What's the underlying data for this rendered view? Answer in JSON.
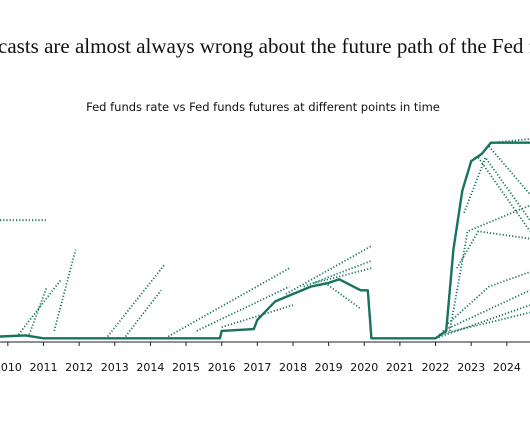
{
  "chart_data": {
    "type": "line",
    "title": "casts are almost always wrong about the future path of the Fed fu",
    "subtitle": "Fed funds rate vs Fed funds futures at different points in time",
    "xlim": [
      2009.78,
      2024.65
    ],
    "xticks": [
      2010,
      2011,
      2012,
      2013,
      2014,
      2015,
      2016,
      2017,
      2018,
      2019,
      2020,
      2021,
      2022,
      2023,
      2024
    ],
    "ylim": [
      0,
      5.5
    ],
    "series": [
      {
        "color": "#17735c",
        "style": "solid",
        "x": [
          2009.78,
          2010.5,
          2011,
          2013,
          2015.95,
          2016.0,
          2016.9,
          2017.0,
          2017.5,
          2018,
          2018.5,
          2019,
          2019.3,
          2019.6,
          2019.9,
          2020.1,
          2020.2,
          2022.0,
          2022.3,
          2022.5,
          2022.75,
          2023.0,
          2023.3,
          2023.55,
          2024.65
        ],
        "values": [
          0.15,
          0.18,
          0.1,
          0.1,
          0.1,
          0.3,
          0.35,
          0.6,
          1.1,
          1.3,
          1.5,
          1.6,
          1.7,
          1.55,
          1.4,
          1.4,
          0.1,
          0.1,
          0.3,
          2.5,
          4.1,
          4.9,
          5.1,
          5.4,
          5.4
        ]
      },
      {
        "color": "#17735c",
        "style": "dotted",
        "x": [
          2009.78,
          2011.1
        ],
        "values": [
          3.3,
          3.3
        ]
      },
      {
        "color": "#17735c",
        "style": "dotted",
        "x": [
          2010.3,
          2011.5
        ],
        "values": [
          0.2,
          1.7
        ]
      },
      {
        "color": "#17735c",
        "style": "dotted",
        "x": [
          2010.6,
          2011.1
        ],
        "values": [
          0.2,
          1.5
        ]
      },
      {
        "color": "#17735c",
        "style": "dotted",
        "x": [
          2011.3,
          2011.9
        ],
        "values": [
          0.3,
          2.5
        ]
      },
      {
        "color": "#17735c",
        "style": "dotted",
        "x": [
          2012.8,
          2014.4
        ],
        "values": [
          0.15,
          2.1
        ]
      },
      {
        "color": "#17735c",
        "style": "dotted",
        "x": [
          2013.3,
          2014.3
        ],
        "values": [
          0.15,
          1.4
        ]
      },
      {
        "color": "#17735c",
        "style": "dotted",
        "x": [
          2014.5,
          2017.9
        ],
        "values": [
          0.15,
          2.0
        ]
      },
      {
        "color": "#17735c",
        "style": "dotted",
        "x": [
          2015.3,
          2017.9
        ],
        "values": [
          0.3,
          1.5
        ]
      },
      {
        "color": "#17735c",
        "style": "dotted",
        "x": [
          2016.0,
          2018.0
        ],
        "values": [
          0.4,
          1.0
        ]
      },
      {
        "color": "#17735c",
        "style": "dotted",
        "x": [
          2017.8,
          2020.2
        ],
        "values": [
          1.3,
          2.6
        ]
      },
      {
        "color": "#17735c",
        "style": "dotted",
        "x": [
          2018.3,
          2020.2
        ],
        "values": [
          1.5,
          2.2
        ]
      },
      {
        "color": "#17735c",
        "style": "dotted",
        "x": [
          2018.6,
          2020.2
        ],
        "values": [
          1.6,
          2.0
        ]
      },
      {
        "color": "#17735c",
        "style": "dotted",
        "x": [
          2018.9,
          2019.9
        ],
        "values": [
          1.6,
          0.9
        ]
      },
      {
        "color": "#17735c",
        "style": "dotted",
        "x": [
          2022.0,
          2024.65
        ],
        "values": [
          0.1,
          1.0
        ]
      },
      {
        "color": "#17735c",
        "style": "dotted",
        "x": [
          2022.1,
          2024.65
        ],
        "values": [
          0.2,
          0.8
        ]
      },
      {
        "color": "#17735c",
        "style": "dotted",
        "x": [
          2022.2,
          2024.65
        ],
        "values": [
          0.3,
          1.4
        ]
      },
      {
        "color": "#17735c",
        "style": "dotted",
        "x": [
          2022.35,
          2023.5,
          2024.65
        ],
        "values": [
          0.5,
          1.5,
          1.9
        ]
      },
      {
        "color": "#17735c",
        "style": "dotted",
        "x": [
          2022.4,
          2022.9,
          2024.65
        ],
        "values": [
          0.3,
          3.0,
          3.7
        ]
      },
      {
        "color": "#17735c",
        "style": "dotted",
        "x": [
          2022.6,
          2023.2,
          2024.65
        ],
        "values": [
          2.0,
          3.0,
          2.8
        ]
      },
      {
        "color": "#17735c",
        "style": "dotted",
        "x": [
          2022.8,
          2023.4,
          2024.65
        ],
        "values": [
          3.5,
          5.0,
          3.3
        ]
      },
      {
        "color": "#17735c",
        "style": "dotted",
        "x": [
          2023.2,
          2024.65
        ],
        "values": [
          5.0,
          3.0
        ]
      },
      {
        "color": "#17735c",
        "style": "dotted",
        "x": [
          2023.5,
          2024.65
        ],
        "values": [
          5.3,
          4.0
        ]
      },
      {
        "color": "#17735c",
        "style": "dotted",
        "x": [
          2023.6,
          2024.65
        ],
        "values": [
          5.4,
          5.5
        ]
      }
    ]
  }
}
